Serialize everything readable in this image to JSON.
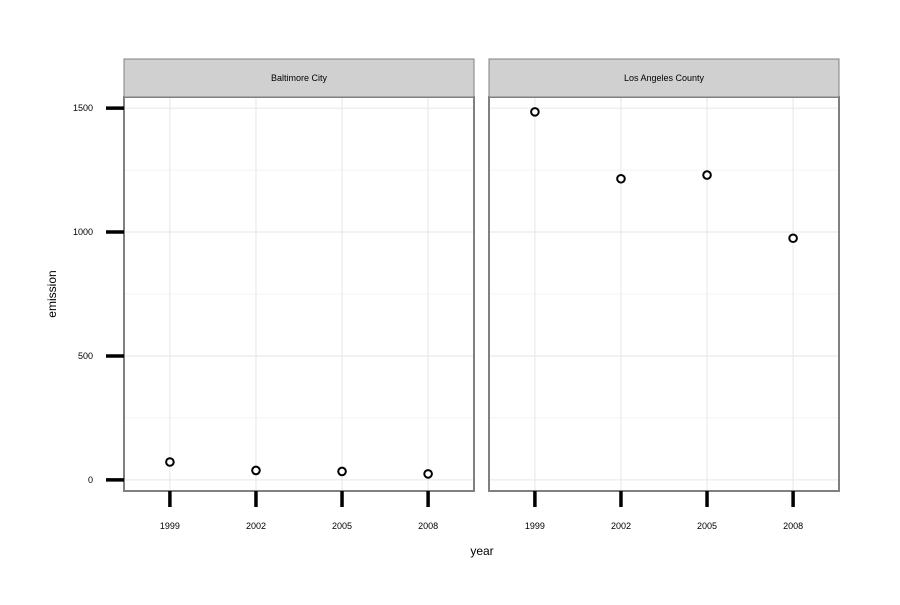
{
  "chart_data": {
    "type": "scatter",
    "xlabel": "year",
    "ylabel": "emission",
    "ylim": [
      -45,
      1545
    ],
    "y_ticks": [
      0,
      500,
      1000,
      1500
    ],
    "x_ticks": [
      1999,
      2002,
      2005,
      2008
    ],
    "xlim": [
      1997.4,
      2009.6
    ],
    "grid": true,
    "point_style": "open circle",
    "colors": {
      "strip_fill": "#d0d0d0",
      "panel_border": "#808080",
      "gridline": "#e6e6e6",
      "point": "#000000"
    },
    "facets": [
      {
        "label": "Baltimore City",
        "x": [
          1999,
          2002,
          2005,
          2008
        ],
        "y": [
          72,
          38,
          34,
          24
        ]
      },
      {
        "label": "Los Angeles County",
        "x": [
          1999,
          2002,
          2005,
          2008
        ],
        "y": [
          1485,
          1215,
          1230,
          975
        ]
      }
    ]
  }
}
